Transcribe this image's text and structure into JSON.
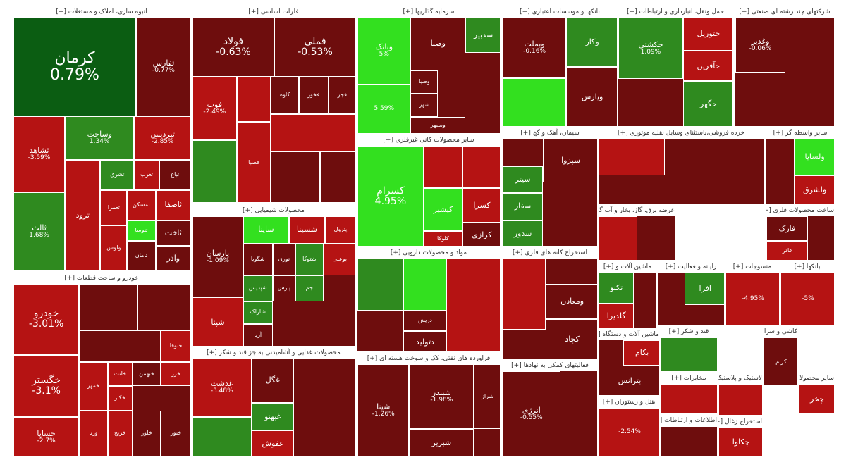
{
  "chart_data": {
    "type": "treemap",
    "colors": {
      "deep_green": "#0b5d12",
      "green": "#2f8a1f",
      "bright_green": "#33e01f",
      "neutral": "#5b0f0f",
      "dark_red": "#6e0d0d",
      "red": "#b51313",
      "bright_red": "#f21b1b"
    },
    "sectors": [
      {
        "label": "انبوه سازی، املاک و مستغلات [+]",
        "tiles": [
          {
            "name": "کرمان",
            "change": "0.79%",
            "color": "deep_green"
          },
          {
            "name": "ثفارس",
            "change": "-0.77%",
            "color": "dark_red"
          },
          {
            "name": "ثشاهد",
            "change": "-3.59%",
            "color": "red"
          },
          {
            "name": "وساخت",
            "change": "1.34%",
            "color": "green"
          },
          {
            "name": "ثپردیس",
            "change": "-2.85%",
            "color": "red"
          },
          {
            "name": "ثالث",
            "change": "1.68%",
            "color": "green"
          },
          {
            "name": "ثشرق",
            "change": "",
            "color": "green"
          },
          {
            "name": "ثغرب",
            "change": "",
            "color": "red"
          },
          {
            "name": "ثباغ",
            "change": "",
            "color": "dark_red"
          },
          {
            "name": "ثمسکن",
            "change": "",
            "color": "red"
          },
          {
            "name": "ثاصفا",
            "change": "",
            "color": "red"
          },
          {
            "name": "ثنوسا",
            "change": "",
            "color": "bright_green"
          },
          {
            "name": "ثاخت",
            "change": "",
            "color": "dark_red"
          },
          {
            "name": "ثامان",
            "change": "",
            "color": "dark_red"
          },
          {
            "name": "وآذر",
            "change": "",
            "color": "dark_red"
          },
          {
            "name": "ثعمرا",
            "change": "",
            "color": "red"
          },
          {
            "name": "ولوس",
            "change": "",
            "color": "red"
          },
          {
            "name": "ثرود",
            "change": "",
            "color": "red"
          }
        ]
      },
      {
        "label": "خودرو و ساخت قطعات [+]",
        "tiles": [
          {
            "name": "خودرو",
            "change": "-3.01%",
            "color": "red"
          },
          {
            "name": "خگستر",
            "change": "-3.1%",
            "color": "red"
          },
          {
            "name": "خساپا",
            "change": "-2.7%",
            "color": "red"
          },
          {
            "name": "",
            "change": "",
            "color": "dark_red"
          },
          {
            "name": "",
            "change": "",
            "color": "dark_red"
          },
          {
            "name": "خنوفا",
            "change": "",
            "color": "red"
          },
          {
            "name": "",
            "change": "",
            "color": "dark_red"
          },
          {
            "name": "خمهر",
            "change": "",
            "color": "red"
          },
          {
            "name": "خلنت",
            "change": "",
            "color": "red"
          },
          {
            "name": "خبهمن",
            "change": "",
            "color": "dark_red"
          },
          {
            "name": "خزر",
            "change": "",
            "color": "red"
          },
          {
            "name": "ورنا",
            "change": "",
            "color": "red"
          },
          {
            "name": "خکار",
            "change": "",
            "color": "red"
          },
          {
            "name": "خریخ",
            "change": "",
            "color": "red"
          },
          {
            "name": "خلور",
            "change": "",
            "color": "dark_red"
          },
          {
            "name": "ختور",
            "change": "",
            "color": "dark_red"
          }
        ]
      },
      {
        "label": "فلزات اساسی [+]",
        "tiles": [
          {
            "name": "فولاد",
            "change": "-0.63%",
            "color": "dark_red"
          },
          {
            "name": "فملی",
            "change": "-0.53%",
            "color": "dark_red"
          },
          {
            "name": "فوب",
            "change": "-2.49%",
            "color": "red"
          },
          {
            "name": "",
            "change": "",
            "color": "red"
          },
          {
            "name": "کاوه",
            "change": "",
            "color": "dark_red"
          },
          {
            "name": "فخوز",
            "change": "",
            "color": "dark_red"
          },
          {
            "name": "فجر",
            "change": "",
            "color": "dark_red"
          },
          {
            "name": "",
            "change": "",
            "color": "green"
          },
          {
            "name": "فصبا",
            "change": "",
            "color": "red"
          },
          {
            "name": "",
            "change": "",
            "color": "red"
          },
          {
            "name": "",
            "change": "",
            "color": "dark_red"
          },
          {
            "name": "",
            "change": "",
            "color": "dark_red"
          }
        ]
      },
      {
        "label": "محصولات شیمیایی [+]",
        "tiles": [
          {
            "name": "پارسان",
            "change": "-1.09%",
            "color": "dark_red"
          },
          {
            "name": "شپنا",
            "change": "",
            "color": "red"
          },
          {
            "name": "ساینا",
            "change": "",
            "color": "bright_green"
          },
          {
            "name": "شسینا",
            "change": "",
            "color": "red"
          },
          {
            "name": "پترول",
            "change": "",
            "color": "red"
          },
          {
            "name": "شگویا",
            "change": "",
            "color": "dark_red"
          },
          {
            "name": "نوری",
            "change": "",
            "color": "dark_red"
          },
          {
            "name": "شتوکا",
            "change": "",
            "color": "green"
          },
          {
            "name": "بوعلی",
            "change": "",
            "color": "red"
          },
          {
            "name": "شپدیس",
            "change": "",
            "color": "green"
          },
          {
            "name": "پارس",
            "change": "",
            "color": "dark_red"
          },
          {
            "name": "شاراک",
            "change": "",
            "color": "green"
          },
          {
            "name": "آریا",
            "change": "",
            "color": "dark_red"
          },
          {
            "name": "جم",
            "change": "",
            "color": "green"
          }
        ]
      },
      {
        "label": "محصولات غذایی و آشامیدنی به جز قند و شکر [+]",
        "tiles": [
          {
            "name": "غدشت",
            "change": "-3.48%",
            "color": "red"
          },
          {
            "name": "غگل",
            "change": "",
            "color": "dark_red"
          },
          {
            "name": "",
            "change": "",
            "color": "green"
          },
          {
            "name": "غبهنو",
            "change": "",
            "color": "green"
          },
          {
            "name": "غفوش",
            "change": "",
            "color": "red"
          }
        ]
      },
      {
        "label": "سرمایه گذاریها [+]",
        "tiles": [
          {
            "name": "وبانک",
            "change": "5%",
            "color": "bright_green"
          },
          {
            "name": "",
            "change": "5.59%",
            "color": "bright_green"
          },
          {
            "name": "وصنا",
            "change": "",
            "color": "dark_red"
          },
          {
            "name": "وصبا",
            "change": "",
            "color": "dark_red"
          },
          {
            "name": "سدبیر",
            "change": "",
            "color": "green"
          },
          {
            "name": "شهر",
            "change": "",
            "color": "dark_red"
          },
          {
            "name": "وسبهر",
            "change": "",
            "color": "dark_red"
          }
        ]
      },
      {
        "label": "سایر محصولات کانی غیرفلزی [+]",
        "tiles": [
          {
            "name": "کسرام",
            "change": "4.95%",
            "color": "bright_green"
          },
          {
            "name": "",
            "change": "",
            "color": "red"
          },
          {
            "name": "",
            "change": "",
            "color": "red"
          },
          {
            "name": "کسرا",
            "change": "",
            "color": "red"
          },
          {
            "name": "کیشیر",
            "change": "",
            "color": "bright_green"
          },
          {
            "name": "کرازی",
            "change": "",
            "color": "dark_red"
          },
          {
            "name": "کلوکا",
            "change": "",
            "color": "red"
          }
        ]
      },
      {
        "label": "مواد و محصولات دارویی [+]",
        "tiles": [
          {
            "name": "",
            "change": "",
            "color": "green"
          },
          {
            "name": "",
            "change": "",
            "color": "bright_green"
          },
          {
            "name": "دریش",
            "change": "",
            "color": "dark_red"
          },
          {
            "name": "دتولید",
            "change": "",
            "color": "dark_red"
          },
          {
            "name": "",
            "change": "",
            "color": "red"
          }
        ]
      },
      {
        "label": "فراورده های نفتی، کک و سوخت هسته ای [+]",
        "tiles": [
          {
            "name": "شپنا",
            "change": "-1.26%",
            "color": "dark_red"
          },
          {
            "name": "شبندر",
            "change": "-1.98%",
            "color": "dark_red"
          },
          {
            "name": "شبریز",
            "change": "",
            "color": "dark_red"
          },
          {
            "name": "شراز",
            "change": "",
            "color": "dark_red"
          }
        ]
      },
      {
        "label": "بانکها و موسسات اعتباری [+]",
        "tiles": [
          {
            "name": "وبملت",
            "change": "-0.16%",
            "color": "dark_red"
          },
          {
            "name": "",
            "change": "",
            "color": "bright_green"
          },
          {
            "name": "وپارس",
            "change": "",
            "color": "dark_red"
          },
          {
            "name": "وکار",
            "change": "",
            "color": "green"
          }
        ]
      },
      {
        "label": "سیمان، آهک و گچ [+]",
        "tiles": [
          {
            "name": "سیتر",
            "change": "",
            "color": "green"
          },
          {
            "name": "سفار",
            "change": "",
            "color": "green"
          },
          {
            "name": "سدور",
            "change": "",
            "color": "green"
          },
          {
            "name": "سپزوا",
            "change": "",
            "color": "dark_red"
          }
        ]
      },
      {
        "label": "استخراج کانه های فلزی [+]",
        "tiles": [
          {
            "name": "",
            "change": "",
            "color": "red"
          },
          {
            "name": "ومعادن",
            "change": "",
            "color": "dark_red"
          },
          {
            "name": "کچاد",
            "change": "",
            "color": "dark_red"
          }
        ]
      },
      {
        "label": "فعالیتهای کمکی به نهادها [+]",
        "tiles": [
          {
            "name": "انرژی",
            "change": "-0.55%",
            "color": "dark_red"
          }
        ]
      },
      {
        "label": "عرضه برق، گاز، بخار و آب گرم [+]",
        "tiles": [
          {
            "name": "",
            "change": "",
            "color": "red"
          }
        ]
      },
      {
        "label": "حمل ونقل، انبارداری و ارتباطات [+]",
        "tiles": [
          {
            "name": "حکشتی",
            "change": "1.09%",
            "color": "green"
          },
          {
            "name": "حتوریل",
            "change": "",
            "color": "red"
          },
          {
            "name": "حآفرین",
            "change": "",
            "color": "red"
          },
          {
            "name": "حگهر",
            "change": "",
            "color": "green"
          }
        ]
      },
      {
        "label": "شرکتهای چند رشته ای صنعتی [+]",
        "tiles": [
          {
            "name": "وغدیر",
            "change": "-0.06%",
            "color": "dark_red"
          }
        ]
      },
      {
        "label": "خرده فروشی،باستثنای وسایل نقلیه موتوری [+]",
        "tiles": [
          {
            "name": "",
            "change": "",
            "color": "red"
          }
        ]
      },
      {
        "label": "سایر واسطه گر [+]",
        "tiles": [
          {
            "name": "ولساپا",
            "change": "",
            "color": "bright_green"
          },
          {
            "name": "ولشرق",
            "change": "",
            "color": "red"
          }
        ]
      },
      {
        "label": "ساخت محصولات فلزی [+]",
        "tiles": [
          {
            "name": "فارک",
            "change": "",
            "color": "dark_red"
          },
          {
            "name": "قادر",
            "change": "",
            "color": "red"
          }
        ]
      },
      {
        "label": "رایانه و فعالیت [+]",
        "tiles": [
          {
            "name": "افرا",
            "change": "",
            "color": "green"
          }
        ]
      },
      {
        "label": "منسوجات [+]",
        "tiles": [
          {
            "name": "",
            "change": "-4.95%",
            "color": "red"
          }
        ]
      },
      {
        "label": "ماشین آلات و [+]",
        "tiles": [
          {
            "name": "تکنو",
            "change": "",
            "color": "green"
          },
          {
            "name": "گلدیرا",
            "change": "",
            "color": "red"
          }
        ]
      },
      {
        "label": "قند و شکر [+]",
        "tiles": [
          {
            "name": "",
            "change": "",
            "color": "green"
          }
        ]
      },
      {
        "label": "ماشین آلات و دستگاه [+]",
        "tiles": [
          {
            "name": "بکام",
            "change": "",
            "color": "red"
          },
          {
            "name": "بترانس",
            "change": "",
            "color": "dark_red"
          }
        ]
      },
      {
        "label": "هتل و رستوران [+]",
        "tiles": [
          {
            "name": "",
            "change": "-2.54%",
            "color": "red"
          }
        ]
      },
      {
        "label": "مخابرات [+]",
        "tiles": [
          {
            "name": "",
            "change": "",
            "color": "red"
          }
        ]
      },
      {
        "label": "لاستیک و پلاستیک [+]",
        "tiles": [
          {
            "name": "",
            "change": "",
            "color": "red"
          }
        ]
      },
      {
        "label": "اطلاعات و ارتباطات [+]",
        "tiles": [
          {
            "name": "",
            "change": "",
            "color": "dark_red"
          }
        ]
      },
      {
        "label": "استخراج زغال [+]",
        "tiles": [
          {
            "name": "چکاوا",
            "change": "",
            "color": "red"
          }
        ]
      },
      {
        "label": "کاشی و سرا [+]",
        "tiles": [
          {
            "name": "کرام",
            "change": "",
            "color": "dark_red"
          }
        ]
      },
      {
        "label": "سایر محصولات [+]",
        "tiles": [
          {
            "name": "چخر",
            "change": "",
            "color": "red"
          }
        ]
      },
      {
        "label": "بانکها [+]",
        "tiles": [
          {
            "name": "",
            "change": "-5%",
            "color": "red"
          }
        ]
      }
    ]
  }
}
